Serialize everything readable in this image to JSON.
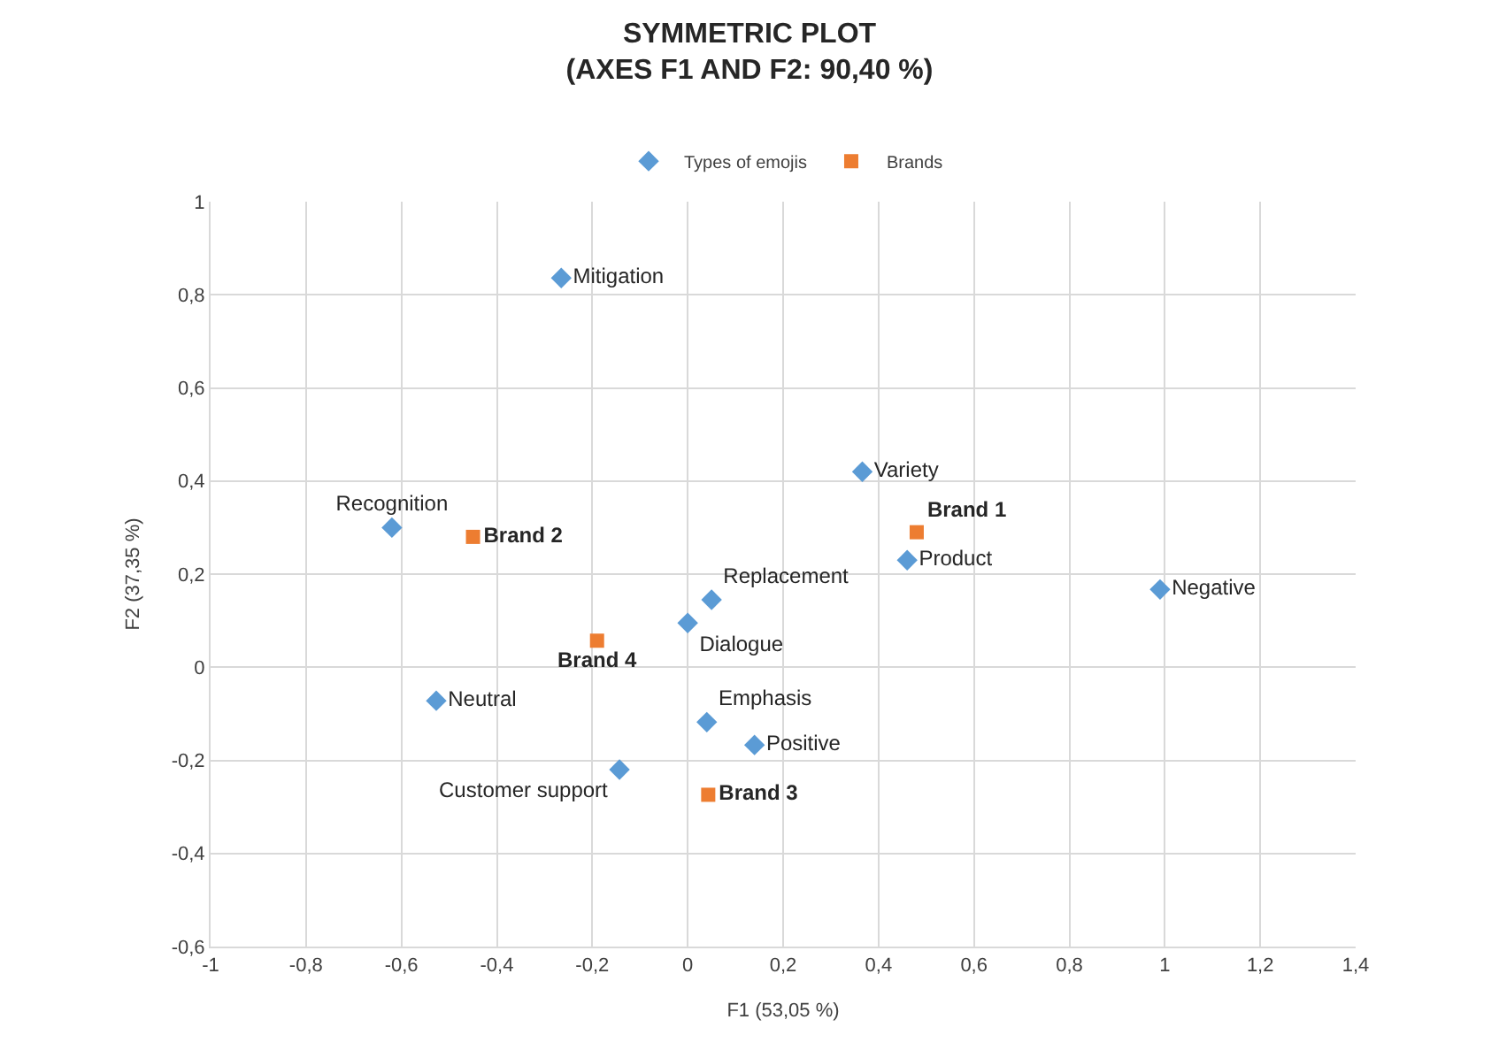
{
  "chart_data": {
    "type": "scatter",
    "title": "SYMMETRIC PLOT\n(AXES F1 AND F2: 90,40 %)",
    "xlabel": "F1 (53,05 %)",
    "ylabel": "F2 (37,35 %)",
    "series": [
      {
        "name": "Types of emojis",
        "color": "#5b9bd5",
        "marker": "diamond",
        "x": [
          -0.265,
          -0.62,
          0.366,
          0.46,
          0.99,
          0.05,
          0.0,
          -0.527,
          0.04,
          0.14,
          -0.143
        ],
        "values": [
          0.836,
          0.3,
          0.42,
          0.23,
          0.167,
          0.145,
          0.095,
          -0.072,
          -0.118,
          -0.167,
          -0.22
        ],
        "value_labels": [
          "Mitigation",
          "Recognition",
          "Variety",
          "Product",
          "Negative",
          "Replacement",
          "Dialogue",
          "Neutral",
          "Emphasis",
          "Positive",
          "Customer support"
        ]
      },
      {
        "name": "Brands",
        "color": "#ed7d31",
        "marker": "square",
        "x": [
          -0.45,
          0.48,
          -0.19,
          0.043
        ],
        "values": [
          0.28,
          0.29,
          0.057,
          -0.274
        ],
        "value_labels": [
          "Brand 2",
          "Brand 1",
          "Brand 4",
          "Brand 3"
        ]
      }
    ],
    "xlim": [
      -1,
      1.4
    ],
    "ylim": [
      -0.6,
      1
    ],
    "xticks": [
      -1,
      {
        "value": -0.8,
        "label": "-0,8"
      },
      {
        "value": -0.6,
        "label": "-0,6"
      },
      {
        "value": -0.4,
        "label": "-0,4"
      },
      {
        "value": -0.2,
        "label": "-0,2"
      },
      0,
      {
        "value": 0.2,
        "label": "0,2"
      },
      {
        "value": 0.4,
        "label": "0,4"
      },
      {
        "value": 0.6,
        "label": "0,6"
      },
      {
        "value": 0.8,
        "label": "0,8"
      },
      1,
      {
        "value": 1.2,
        "label": "1,2"
      },
      {
        "value": 1.4,
        "label": "1,4"
      }
    ],
    "yticks": [
      {
        "value": -0.6,
        "label": "-0,6"
      },
      {
        "value": -0.4,
        "label": "-0,4"
      },
      {
        "value": -0.2,
        "label": "-0,2"
      },
      0,
      {
        "value": 0.2,
        "label": "0,2"
      },
      {
        "value": 0.4,
        "label": "0,4"
      },
      {
        "value": 0.6,
        "label": "0,6"
      },
      {
        "value": 0.8,
        "label": "0,8"
      },
      1
    ],
    "grid": true,
    "legend": "top"
  }
}
